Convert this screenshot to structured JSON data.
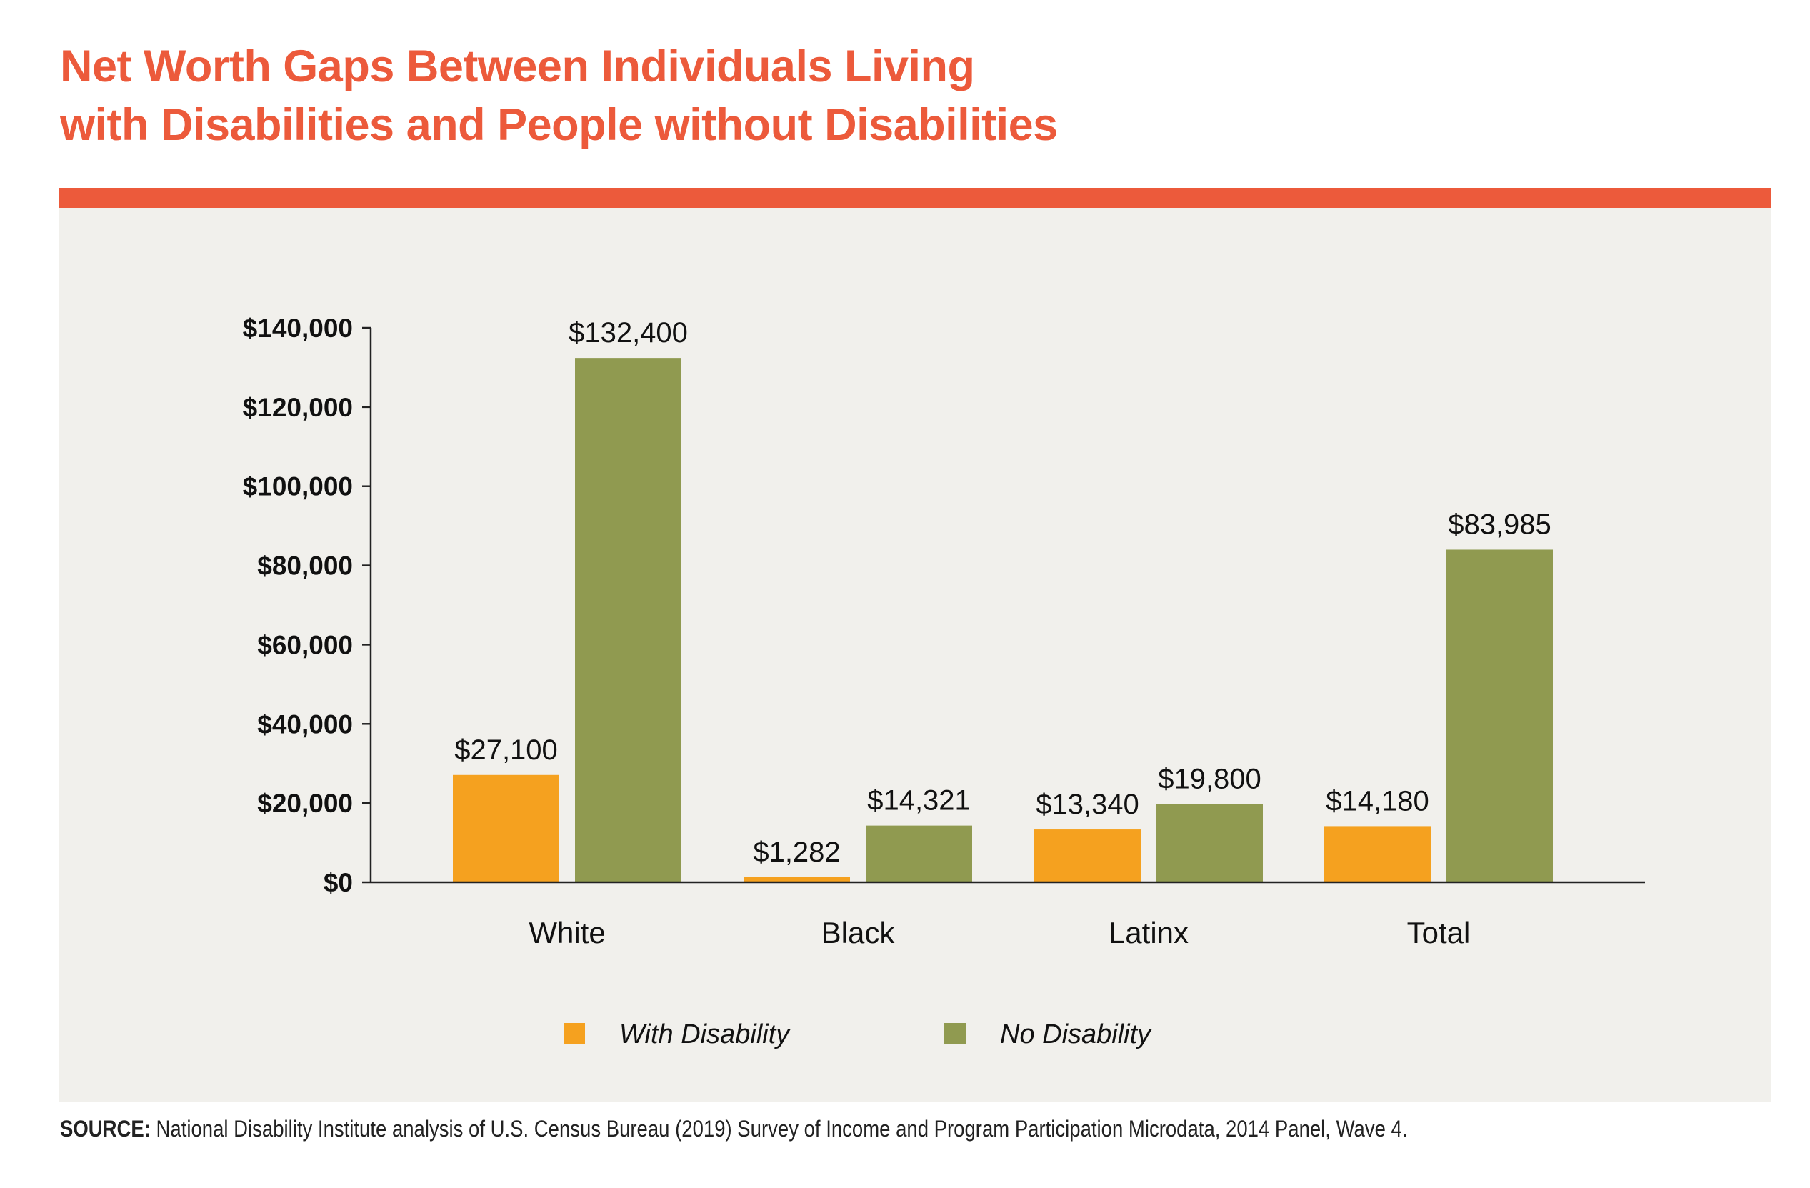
{
  "title": {
    "line1": "Net Worth Gaps Between Individuals Living",
    "line2": "with Disabilities and People without Disabilities"
  },
  "source": {
    "label": "SOURCE:",
    "text": "National Disability Institute analysis of U.S. Census Bureau (2019) Survey of Income and Program Participation Microdata, 2014 Panel, Wave 4."
  },
  "colors": {
    "accent": "#ec5a3b",
    "panel": "#f1f0ec",
    "with_disability": "#f5a11f",
    "no_disability": "#909a50"
  },
  "chart_data": {
    "type": "bar",
    "categories": [
      "White",
      "Black",
      "Latinx",
      "Total"
    ],
    "series": [
      {
        "name": "With Disability",
        "values": [
          27100,
          1282,
          13340,
          14180
        ],
        "labels": [
          "$27,100",
          "$1,282",
          "$13,340",
          "$14,180"
        ],
        "color": "#f5a11f"
      },
      {
        "name": "No Disability",
        "values": [
          132400,
          14321,
          19800,
          83985
        ],
        "labels": [
          "$132,400",
          "$14,321",
          "$19,800",
          "$83,985"
        ],
        "color": "#909a50"
      }
    ],
    "ylim": [
      0,
      140000
    ],
    "yticks": [
      0,
      20000,
      40000,
      60000,
      80000,
      100000,
      120000,
      140000
    ],
    "ytick_labels": [
      "$0",
      "$20,000",
      "$40,000",
      "$60,000",
      "$80,000",
      "$100,000",
      "$120,000",
      "$140,000"
    ],
    "grid": false,
    "legend_position": "bottom-center"
  }
}
